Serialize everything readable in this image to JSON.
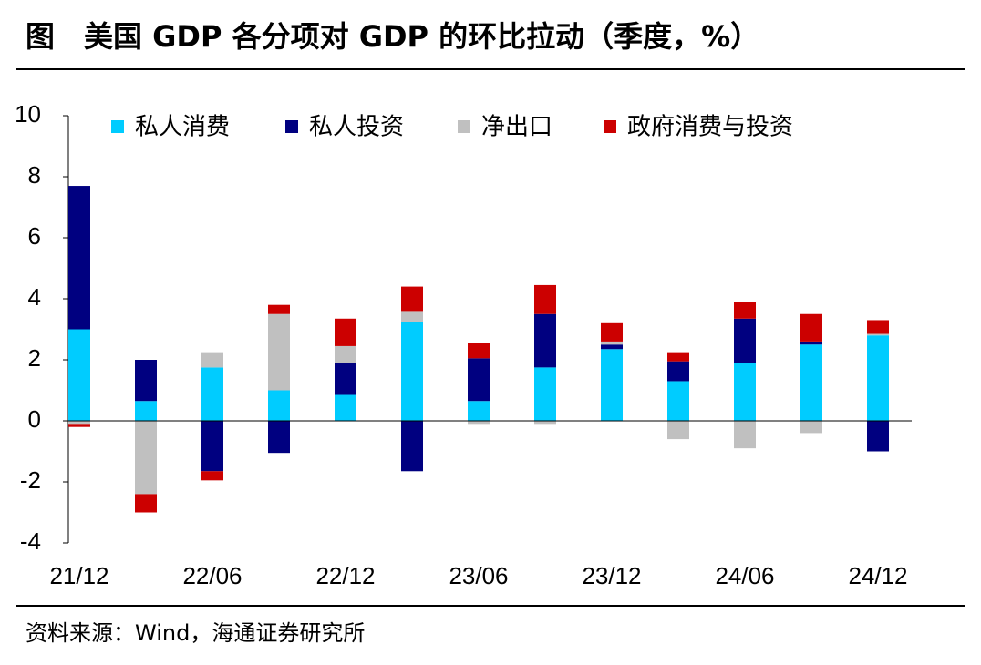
{
  "chart_data": {
    "type": "stacked-bar",
    "title": "图　美国 GDP 各分项对 GDP 的环比拉动（季度，%）",
    "source": "资料来源：Wind，海通证券研究所",
    "categories": [
      "21/12",
      null,
      "22/06",
      null,
      "22/12",
      null,
      "23/06",
      null,
      "23/12",
      null,
      "24/06",
      null,
      "24/12"
    ],
    "series": [
      {
        "name": "私人消费",
        "color": "#00CCFF",
        "values": [
          3.0,
          0.65,
          1.75,
          1.0,
          0.85,
          3.25,
          0.65,
          1.75,
          2.35,
          1.3,
          1.9,
          2.5,
          2.8
        ]
      },
      {
        "name": "私人投资",
        "color": "#000080",
        "values": [
          4.7,
          1.35,
          -1.65,
          -1.05,
          1.05,
          -1.65,
          1.4,
          1.75,
          0.15,
          0.65,
          1.45,
          0.1,
          -1.0
        ]
      },
      {
        "name": "净出口",
        "color": "#C0C0C0",
        "values": [
          -0.1,
          -2.4,
          0.5,
          2.5,
          0.55,
          0.35,
          -0.1,
          -0.1,
          0.1,
          -0.6,
          -0.9,
          -0.4,
          0.05
        ]
      },
      {
        "name": "政府消费与投资",
        "color": "#CC0000",
        "values": [
          -0.1,
          -0.6,
          -0.3,
          0.3,
          0.9,
          0.8,
          0.5,
          0.95,
          0.6,
          0.3,
          0.55,
          0.9,
          0.45
        ]
      }
    ],
    "ylim": [
      -4,
      10
    ],
    "yticks": [
      -4,
      -2,
      0,
      2,
      4,
      6,
      8,
      10
    ]
  }
}
